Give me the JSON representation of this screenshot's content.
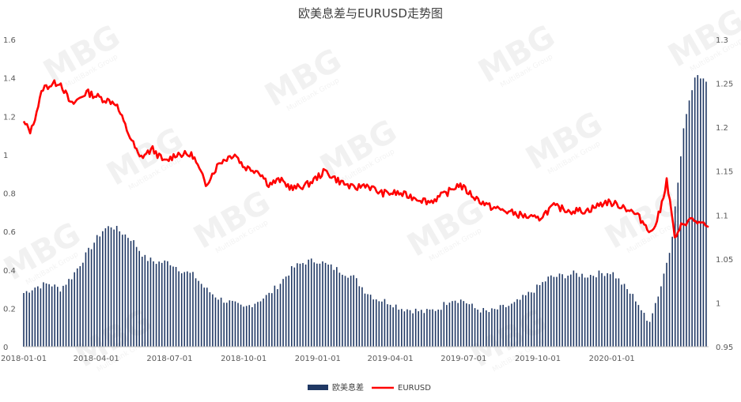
{
  "chart_data": {
    "type": "bar+line",
    "title": "欧美息差与EURUSD走势图",
    "watermark": "MBG",
    "watermark_sub": "MultiBank Group",
    "x_axis": {
      "type": "date",
      "range": [
        "2018-01-01",
        "2020-04-30"
      ],
      "tick_labels": [
        "2018-01-01",
        "2018-04-01",
        "2018-07-01",
        "2018-10-01",
        "2019-01-01",
        "2019-04-01",
        "2019-07-01",
        "2019-10-01",
        "2020-01-01"
      ]
    },
    "y_left": {
      "min": 0,
      "max": 1.6,
      "ticks": [
        "0",
        "0.2",
        "0.4",
        "0.6",
        "0.8",
        "1",
        "1.2",
        "1.4",
        "1.6"
      ]
    },
    "y_right": {
      "min": 0.95,
      "max": 1.3,
      "ticks": [
        "0.95",
        "1",
        "1.05",
        "1.1",
        "1.15",
        "1.2",
        "1.25",
        "1.3"
      ]
    },
    "legend": {
      "placement": "bottom",
      "items": [
        "欧美息差",
        "EURUSD"
      ]
    },
    "series": [
      {
        "name": "欧美息差",
        "kind": "bar",
        "axis": "left",
        "color": "#203864",
        "points": [
          [
            "2018-01-01",
            0.28
          ],
          [
            "2018-01-15",
            0.31
          ],
          [
            "2018-02-01",
            0.33
          ],
          [
            "2018-02-15",
            0.3
          ],
          [
            "2018-03-01",
            0.36
          ],
          [
            "2018-03-15",
            0.45
          ],
          [
            "2018-04-01",
            0.56
          ],
          [
            "2018-04-10",
            0.61
          ],
          [
            "2018-04-20",
            0.63
          ],
          [
            "2018-05-01",
            0.6
          ],
          [
            "2018-05-15",
            0.56
          ],
          [
            "2018-06-01",
            0.46
          ],
          [
            "2018-06-15",
            0.44
          ],
          [
            "2018-07-01",
            0.44
          ],
          [
            "2018-07-15",
            0.4
          ],
          [
            "2018-08-01",
            0.37
          ],
          [
            "2018-08-15",
            0.3
          ],
          [
            "2018-09-01",
            0.25
          ],
          [
            "2018-09-15",
            0.23
          ],
          [
            "2018-10-01",
            0.2
          ],
          [
            "2018-10-15",
            0.23
          ],
          [
            "2018-11-01",
            0.27
          ],
          [
            "2018-11-15",
            0.33
          ],
          [
            "2018-12-01",
            0.41
          ],
          [
            "2018-12-15",
            0.44
          ],
          [
            "2019-01-01",
            0.45
          ],
          [
            "2019-01-15",
            0.42
          ],
          [
            "2019-02-01",
            0.39
          ],
          [
            "2019-02-15",
            0.36
          ],
          [
            "2019-03-01",
            0.29
          ],
          [
            "2019-03-15",
            0.25
          ],
          [
            "2019-04-01",
            0.23
          ],
          [
            "2019-04-15",
            0.2
          ],
          [
            "2019-05-01",
            0.19
          ],
          [
            "2019-05-15",
            0.18
          ],
          [
            "2019-06-01",
            0.2
          ],
          [
            "2019-06-15",
            0.25
          ],
          [
            "2019-07-01",
            0.24
          ],
          [
            "2019-07-15",
            0.2
          ],
          [
            "2019-08-01",
            0.18
          ],
          [
            "2019-08-15",
            0.2
          ],
          [
            "2019-09-01",
            0.22
          ],
          [
            "2019-09-15",
            0.26
          ],
          [
            "2019-10-01",
            0.31
          ],
          [
            "2019-10-15",
            0.36
          ],
          [
            "2019-11-01",
            0.37
          ],
          [
            "2019-11-15",
            0.38
          ],
          [
            "2019-12-01",
            0.37
          ],
          [
            "2019-12-15",
            0.38
          ],
          [
            "2020-01-01",
            0.39
          ],
          [
            "2020-01-15",
            0.32
          ],
          [
            "2020-02-01",
            0.24
          ],
          [
            "2020-02-15",
            0.12
          ],
          [
            "2020-03-01",
            0.3
          ],
          [
            "2020-03-15",
            0.55
          ],
          [
            "2020-04-01",
            1.2
          ],
          [
            "2020-04-15",
            1.44
          ],
          [
            "2020-04-30",
            1.35
          ]
        ]
      },
      {
        "name": "EURUSD",
        "kind": "line",
        "axis": "right",
        "color": "#ff0000",
        "points": [
          [
            "2018-01-01",
            1.205
          ],
          [
            "2018-01-10",
            1.195
          ],
          [
            "2018-01-25",
            1.245
          ],
          [
            "2018-02-15",
            1.252
          ],
          [
            "2018-03-01",
            1.225
          ],
          [
            "2018-03-20",
            1.24
          ],
          [
            "2018-04-10",
            1.232
          ],
          [
            "2018-04-25",
            1.228
          ],
          [
            "2018-05-10",
            1.195
          ],
          [
            "2018-05-25",
            1.165
          ],
          [
            "2018-06-10",
            1.175
          ],
          [
            "2018-06-25",
            1.16
          ],
          [
            "2018-07-10",
            1.17
          ],
          [
            "2018-07-30",
            1.168
          ],
          [
            "2018-08-15",
            1.135
          ],
          [
            "2018-09-01",
            1.16
          ],
          [
            "2018-09-20",
            1.17
          ],
          [
            "2018-10-01",
            1.155
          ],
          [
            "2018-10-20",
            1.15
          ],
          [
            "2018-11-01",
            1.135
          ],
          [
            "2018-11-15",
            1.14
          ],
          [
            "2018-12-01",
            1.13
          ],
          [
            "2018-12-20",
            1.135
          ],
          [
            "2019-01-10",
            1.15
          ],
          [
            "2019-01-25",
            1.14
          ],
          [
            "2019-02-15",
            1.13
          ],
          [
            "2019-03-01",
            1.135
          ],
          [
            "2019-03-20",
            1.125
          ],
          [
            "2019-04-10",
            1.125
          ],
          [
            "2019-05-01",
            1.12
          ],
          [
            "2019-05-20",
            1.115
          ],
          [
            "2019-06-10",
            1.125
          ],
          [
            "2019-06-25",
            1.135
          ],
          [
            "2019-07-15",
            1.12
          ],
          [
            "2019-08-01",
            1.11
          ],
          [
            "2019-08-20",
            1.105
          ],
          [
            "2019-09-10",
            1.1
          ],
          [
            "2019-10-01",
            1.095
          ],
          [
            "2019-10-20",
            1.11
          ],
          [
            "2019-11-10",
            1.105
          ],
          [
            "2019-12-01",
            1.105
          ],
          [
            "2019-12-25",
            1.115
          ],
          [
            "2020-01-15",
            1.11
          ],
          [
            "2020-02-01",
            1.1
          ],
          [
            "2020-02-20",
            1.08
          ],
          [
            "2020-03-01",
            1.105
          ],
          [
            "2020-03-09",
            1.14
          ],
          [
            "2020-03-20",
            1.07
          ],
          [
            "2020-03-28",
            1.09
          ],
          [
            "2020-04-10",
            1.095
          ],
          [
            "2020-04-30",
            1.085
          ]
        ]
      }
    ]
  }
}
